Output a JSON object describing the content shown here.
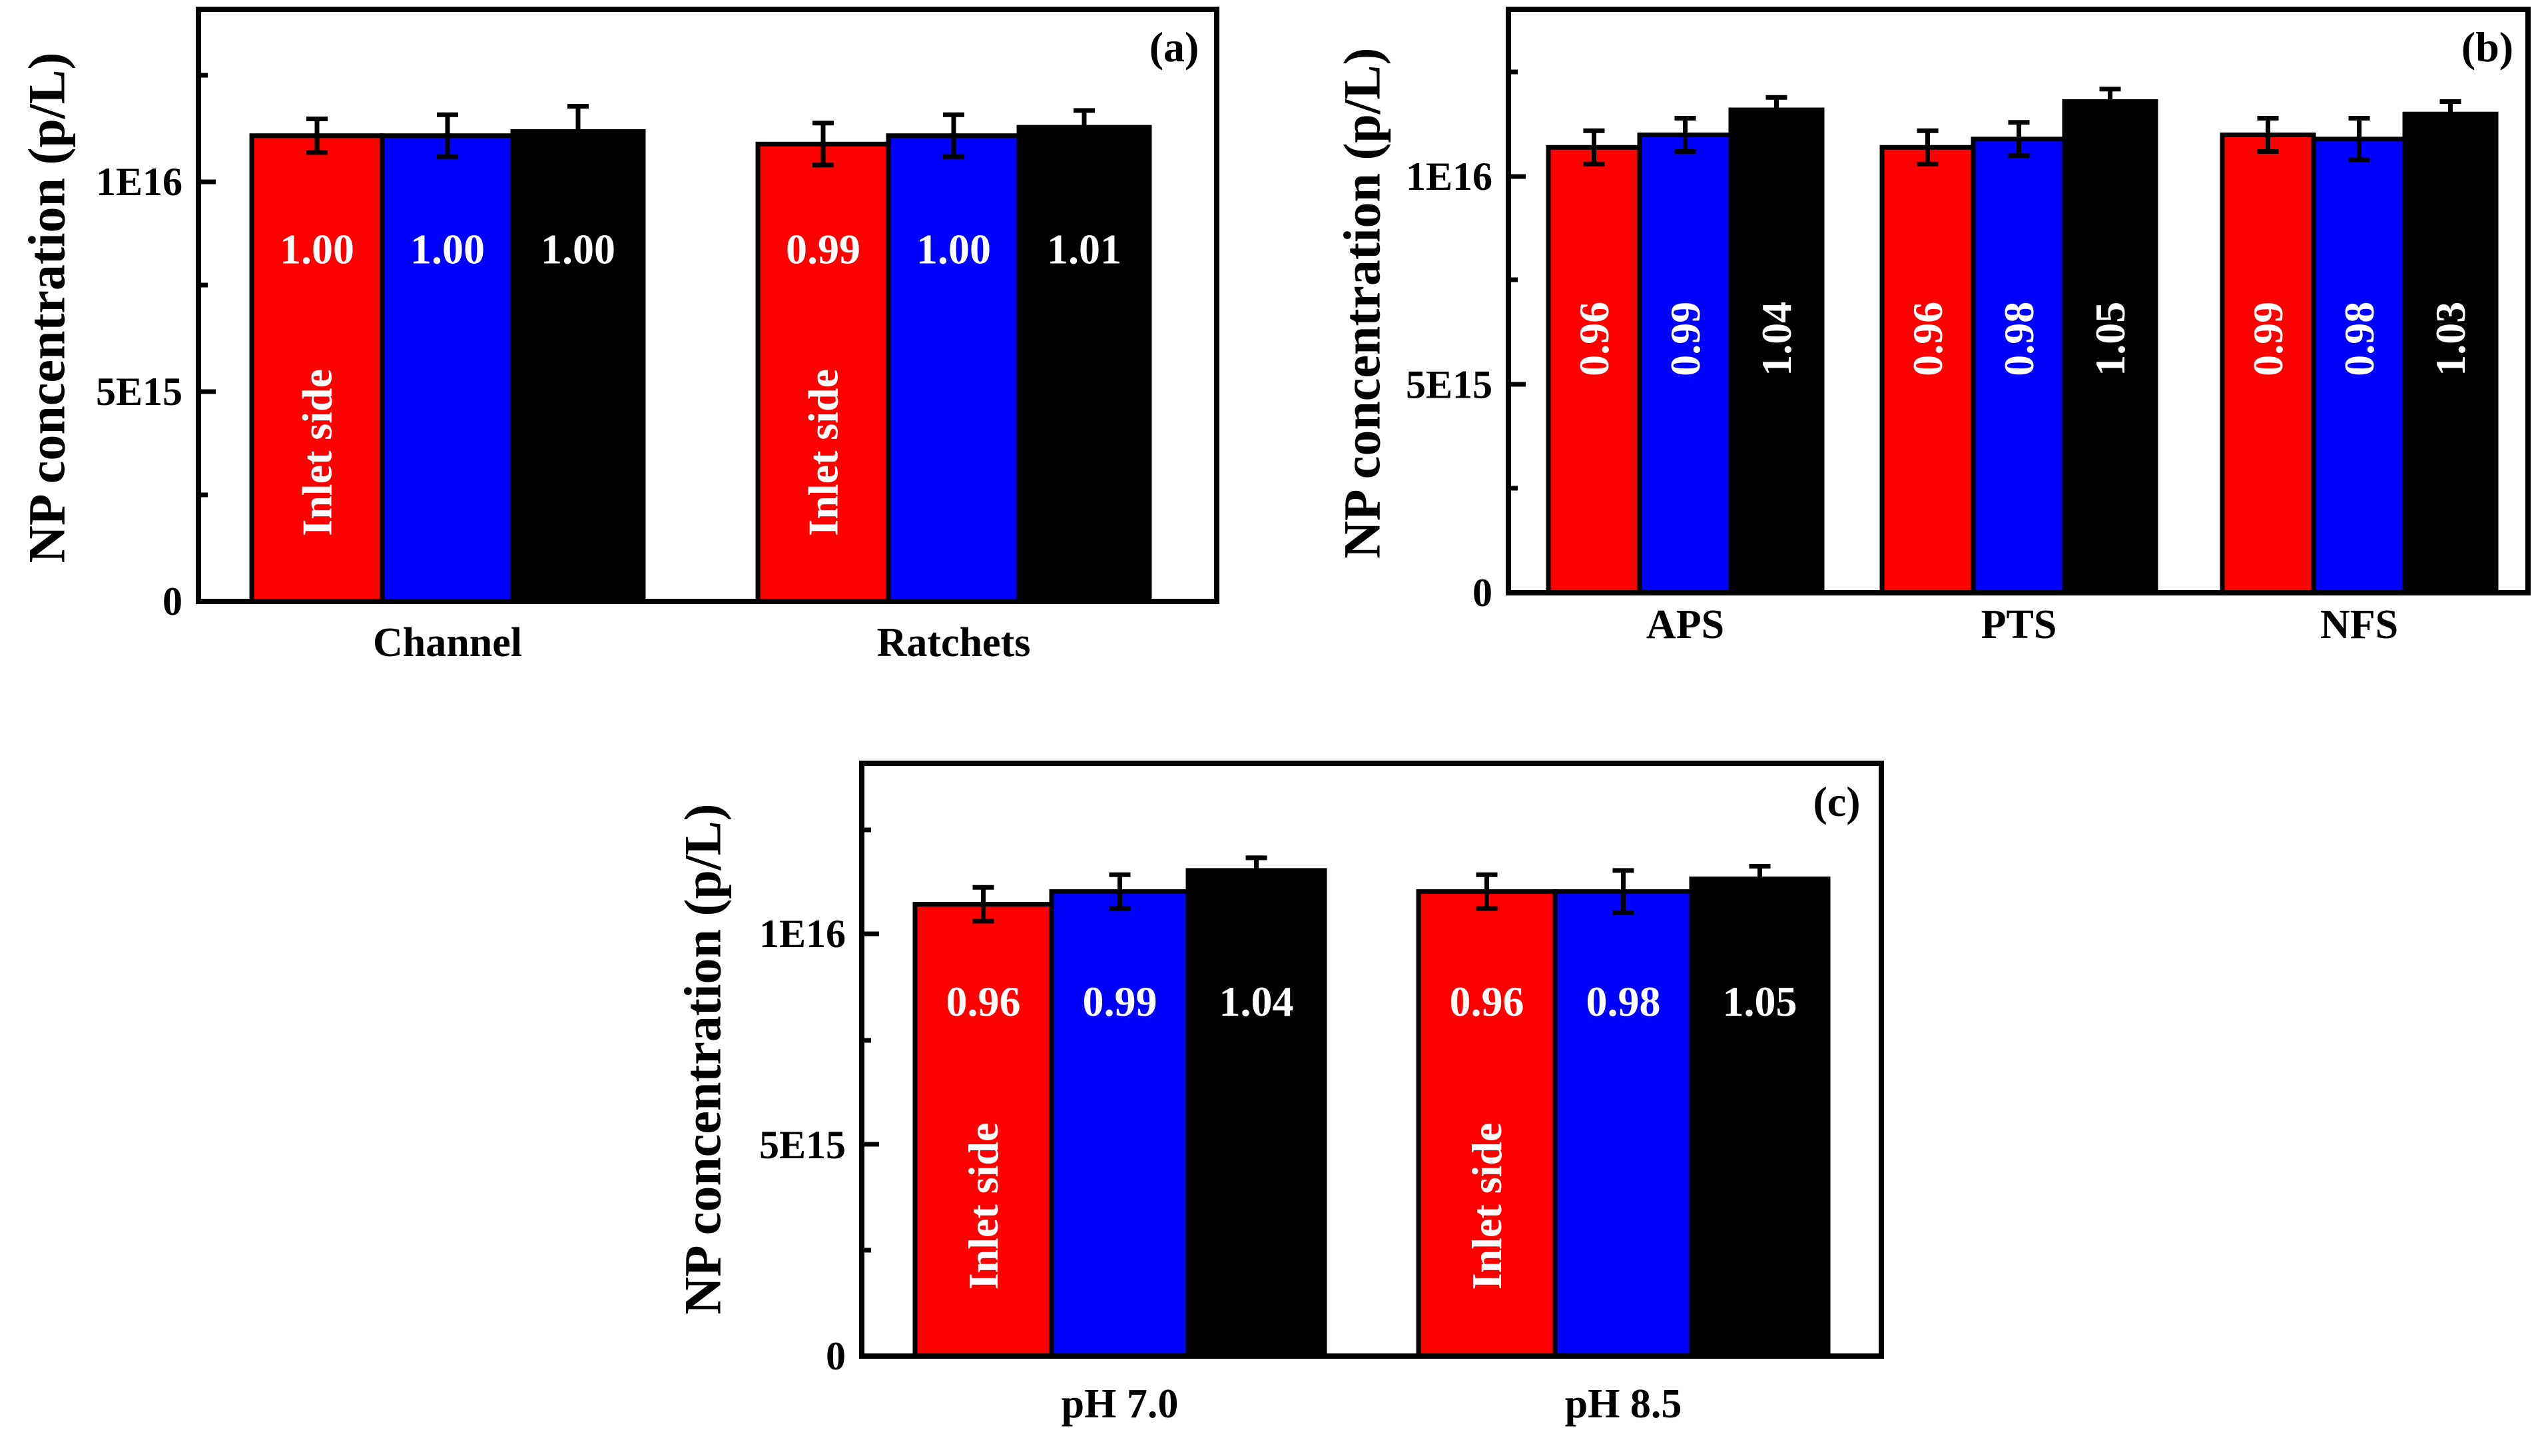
{
  "colors": {
    "series": [
      "#ff0000",
      "#0000ff",
      "#000000"
    ],
    "frame": "#000000"
  },
  "chart_data": [
    {
      "type": "bar",
      "panel_label": "(a)",
      "ylabel": "NP concentration (p/L)",
      "y_tick_labels": [
        "0",
        "5E15",
        "1E16"
      ],
      "y_ticks": [
        0,
        5000000000000000.0,
        1e+16
      ],
      "ylim": [
        0,
        1.4e+16
      ],
      "grid": false,
      "categories": [
        "Channel",
        "Ratchets"
      ],
      "series": [
        {
          "values": [
            1.11e+16,
            1.09e+16
          ],
          "errors": [
            400000000000000.0,
            500000000000000.0
          ],
          "ratio_labels": [
            "1.00",
            "0.99"
          ],
          "inner_labels": [
            "Inlet side",
            "Inlet side"
          ]
        },
        {
          "values": [
            1.11e+16,
            1.11e+16
          ],
          "errors": [
            500000000000000.0,
            500000000000000.0
          ],
          "ratio_labels": [
            "1.00",
            "1.00"
          ]
        },
        {
          "values": [
            1.12e+16,
            1.13e+16
          ],
          "errors": [
            600000000000000.0,
            400000000000000.0
          ],
          "ratio_labels": [
            "1.00",
            "1.01"
          ]
        }
      ]
    },
    {
      "type": "bar",
      "panel_label": "(b)",
      "ylabel": "NP concentration (p/L)",
      "y_tick_labels": [
        "0",
        "5E15",
        "1E16"
      ],
      "y_ticks": [
        0,
        5000000000000000.0,
        1e+16
      ],
      "ylim": [
        0,
        1.4e+16
      ],
      "grid": false,
      "categories": [
        "APS",
        "PTS",
        "NFS"
      ],
      "series": [
        {
          "values": [
            1.07e+16,
            1.07e+16,
            1.1e+16
          ],
          "errors": [
            400000000000000.0,
            400000000000000.0,
            400000000000000.0
          ],
          "ratio_labels": [
            "0.96",
            "0.96",
            "0.99"
          ]
        },
        {
          "values": [
            1.1e+16,
            1.09e+16,
            1.09e+16
          ],
          "errors": [
            400000000000000.0,
            400000000000000.0,
            500000000000000.0
          ],
          "ratio_labels": [
            "0.99",
            "0.98",
            "0.98"
          ]
        },
        {
          "values": [
            1.16e+16,
            1.18e+16,
            1.15e+16
          ],
          "errors": [
            300000000000000.0,
            300000000000000.0,
            300000000000000.0
          ],
          "ratio_labels": [
            "1.04",
            "1.05",
            "1.03"
          ]
        }
      ]
    },
    {
      "type": "bar",
      "panel_label": "(c)",
      "ylabel": "NP concentration (p/L)",
      "y_tick_labels": [
        "0",
        "5E15",
        "1E16"
      ],
      "y_ticks": [
        0,
        5000000000000000.0,
        1e+16
      ],
      "ylim": [
        0,
        1.4e+16
      ],
      "grid": false,
      "categories": [
        "pH 7.0",
        "pH 8.5"
      ],
      "series": [
        {
          "values": [
            1.07e+16,
            1.1e+16
          ],
          "errors": [
            400000000000000.0,
            400000000000000.0
          ],
          "ratio_labels": [
            "0.96",
            "0.96"
          ],
          "inner_labels": [
            "Inlet side",
            "Inlet side"
          ]
        },
        {
          "values": [
            1.1e+16,
            1.1e+16
          ],
          "errors": [
            400000000000000.0,
            500000000000000.0
          ],
          "ratio_labels": [
            "0.99",
            "0.98"
          ]
        },
        {
          "values": [
            1.15e+16,
            1.13e+16
          ],
          "errors": [
            300000000000000.0,
            300000000000000.0
          ],
          "ratio_labels": [
            "1.04",
            "1.05"
          ]
        }
      ]
    }
  ]
}
